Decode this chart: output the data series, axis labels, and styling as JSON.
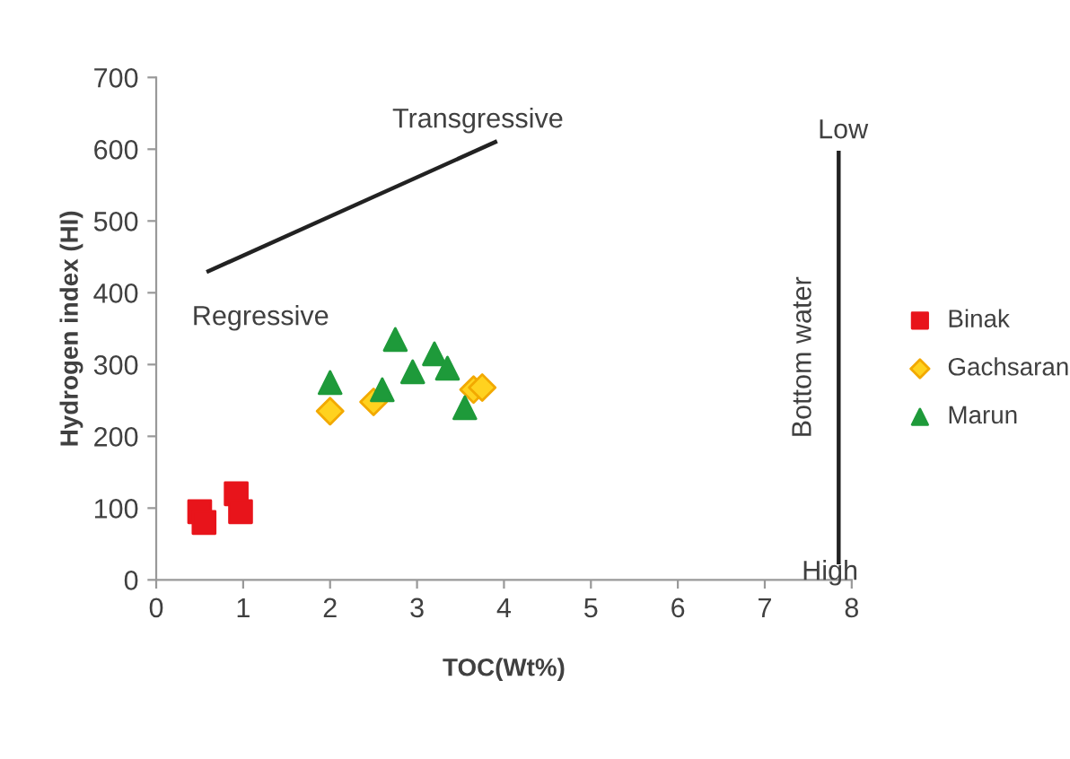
{
  "chart_data": {
    "type": "scatter",
    "xlabel": "TOC(Wt%)",
    "ylabel": "Hydrogen index (HI)",
    "xlim": [
      0,
      8
    ],
    "xticks": [
      0,
      1,
      2,
      3,
      4,
      5,
      6,
      7,
      8
    ],
    "ylim": [
      0,
      700
    ],
    "yticks": [
      0,
      100,
      200,
      300,
      400,
      500,
      600,
      700
    ],
    "grid": false,
    "legend": "right",
    "series": [
      {
        "name": "Binak",
        "color": "#e8141b",
        "marker": "square",
        "x": [
          0.5,
          0.55,
          0.92,
          0.97
        ],
        "values": [
          95,
          80,
          120,
          95
        ]
      },
      {
        "name": "Gachsaran",
        "color": "#ffd21f",
        "marker": "diamond",
        "x": [
          2.0,
          2.5,
          3.65,
          3.75
        ],
        "values": [
          235,
          248,
          265,
          268
        ]
      },
      {
        "name": "Marun",
        "color": "#1e9a3a",
        "marker": "triangle",
        "x": [
          2.0,
          2.6,
          2.75,
          2.95,
          3.2,
          3.35,
          3.55
        ],
        "values": [
          275,
          265,
          335,
          290,
          315,
          295,
          240
        ]
      }
    ],
    "ref_lines": [
      {
        "axis": "x",
        "value": 7.85,
        "color": "#222222"
      }
    ],
    "annotations": [
      "Transgressive",
      "Regressive",
      "Low",
      "High",
      "Bottom water"
    ]
  }
}
